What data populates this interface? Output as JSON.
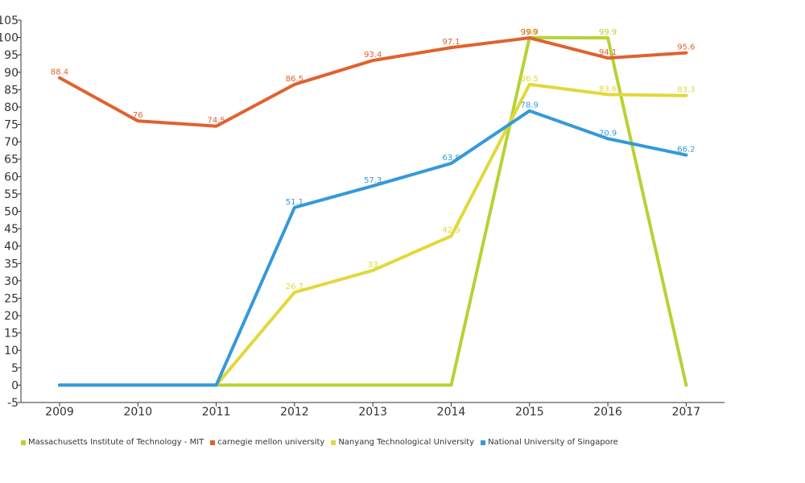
{
  "chart_data": {
    "type": "line",
    "title": "",
    "xlabel": "",
    "ylabel": "",
    "categories": [
      "2009",
      "2010",
      "2011",
      "2012",
      "2013",
      "2014",
      "2015",
      "2016",
      "2017"
    ],
    "ylim": [
      -5,
      105
    ],
    "yticks": [
      -5,
      0,
      5,
      10,
      15,
      20,
      25,
      30,
      35,
      40,
      45,
      50,
      55,
      60,
      65,
      70,
      75,
      80,
      85,
      90,
      95,
      100,
      105
    ],
    "grid": false,
    "legend_position": "bottom-left",
    "series": [
      {
        "name": "Massachusetts Institute of Technology - MIT",
        "color": "#b5d334",
        "values": [
          0,
          0,
          0,
          0,
          0,
          0,
          100,
          99.9,
          0
        ],
        "labels": [
          "",
          "",
          "",
          "",
          "",
          "",
          "100",
          "99.9",
          ""
        ]
      },
      {
        "name": "carnegie mellon university",
        "color": "#e0622f",
        "values": [
          88.4,
          76,
          74.5,
          86.5,
          93.4,
          97.1,
          99.9,
          94.1,
          95.6
        ],
        "labels": [
          "88.4",
          "76",
          "74.5",
          "86.5",
          "93.4",
          "97.1",
          "99.9",
          "94.1",
          "95.6"
        ]
      },
      {
        "name": "Nanyang Technological University",
        "color": "#e2d83a",
        "values": [
          0,
          0,
          0,
          26.7,
          33,
          42.9,
          86.5,
          83.6,
          83.3
        ],
        "labels": [
          "",
          "",
          "",
          "26.7",
          "33",
          "42.9",
          "86.5",
          "83.6",
          "83.3"
        ]
      },
      {
        "name": "National University of Singapore",
        "color": "#3499db",
        "values": [
          0,
          0,
          0,
          51.1,
          57.3,
          63.8,
          78.9,
          70.9,
          66.2
        ],
        "labels": [
          "",
          "",
          "",
          "51.1",
          "57.3",
          "63.8",
          "78.9",
          "70.9",
          "66.2"
        ]
      }
    ]
  }
}
